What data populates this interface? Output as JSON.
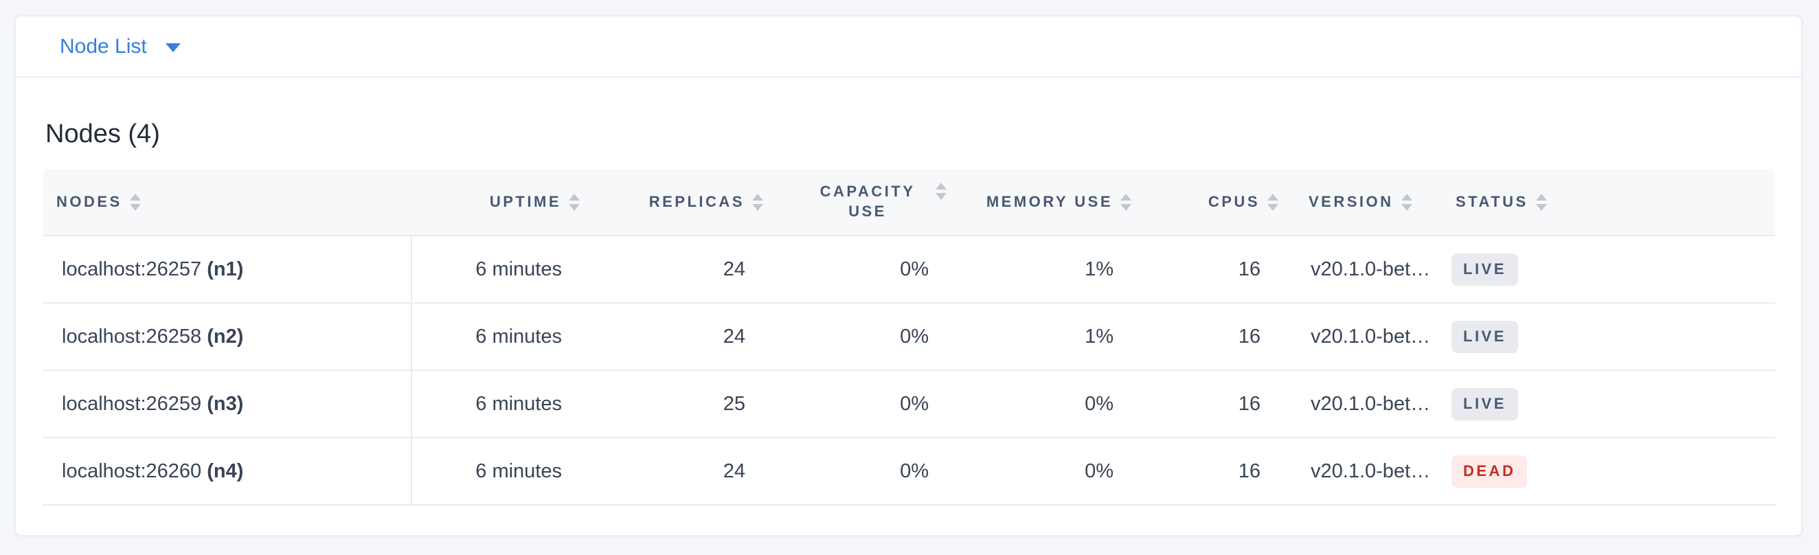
{
  "view_selector": {
    "label": "Node List",
    "accent_color": "#3a7ce0",
    "caret_icon": "chevron-down"
  },
  "summary": {
    "title": "Nodes (4)"
  },
  "table": {
    "sort_icon": "sort-arrows",
    "columns": [
      {
        "key": "address",
        "label": "Nodes",
        "align": "left"
      },
      {
        "key": "uptime",
        "label": "Uptime",
        "align": "right"
      },
      {
        "key": "replicas",
        "label": "Replicas",
        "align": "right"
      },
      {
        "key": "capacity_use",
        "label": "Capacity Use",
        "align": "right"
      },
      {
        "key": "memory_use",
        "label": "Memory Use",
        "align": "right"
      },
      {
        "key": "cpus",
        "label": "CPUs",
        "align": "right"
      },
      {
        "key": "version",
        "label": "Version",
        "align": "left"
      },
      {
        "key": "status",
        "label": "Status",
        "align": "left"
      }
    ],
    "rows": [
      {
        "address": "localhost:26257",
        "node_id": "(n1)",
        "uptime": "6 minutes",
        "replicas": "24",
        "capacity_use": "0%",
        "memory_use": "1%",
        "cpus": "16",
        "version": "v20.1.0-bet…",
        "status": "LIVE"
      },
      {
        "address": "localhost:26258",
        "node_id": "(n2)",
        "uptime": "6 minutes",
        "replicas": "24",
        "capacity_use": "0%",
        "memory_use": "1%",
        "cpus": "16",
        "version": "v20.1.0-bet…",
        "status": "LIVE"
      },
      {
        "address": "localhost:26259",
        "node_id": "(n3)",
        "uptime": "6 minutes",
        "replicas": "25",
        "capacity_use": "0%",
        "memory_use": "0%",
        "cpus": "16",
        "version": "v20.1.0-bet…",
        "status": "LIVE"
      },
      {
        "address": "localhost:26260",
        "node_id": "(n4)",
        "uptime": "6 minutes",
        "replicas": "24",
        "capacity_use": "0%",
        "memory_use": "0%",
        "cpus": "16",
        "version": "v20.1.0-bet…",
        "status": "DEAD"
      }
    ],
    "status_styles": {
      "LIVE": {
        "bg": "#e8eaf0",
        "text": "#475872"
      },
      "DEAD": {
        "bg": "#fcebea",
        "text": "#c62c23"
      }
    }
  }
}
